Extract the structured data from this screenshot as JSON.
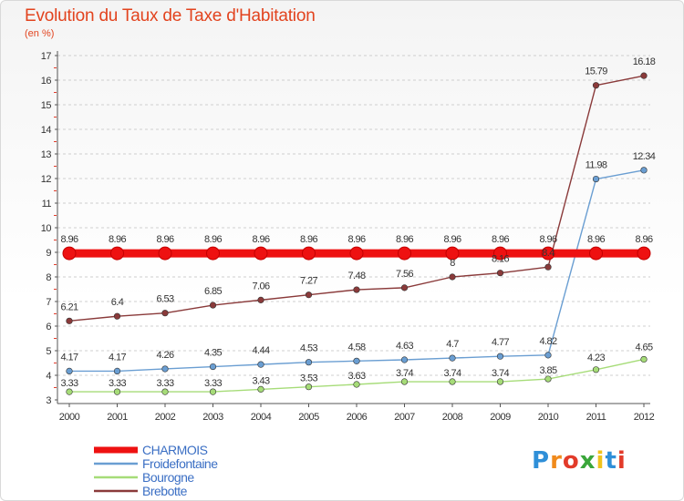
{
  "title": "Evolution du Taux de Taxe d'Habitation",
  "subtitle": "(en %)",
  "logo": {
    "letters": [
      "P",
      "r",
      "o",
      "x",
      "i",
      "t",
      "i"
    ],
    "colors": [
      "#2f8fd8",
      "#f08a1c",
      "#e23b2a",
      "#3aa63a",
      "#f0c21c",
      "#2f8fd8",
      "#e23b2a"
    ]
  },
  "chart_data": {
    "type": "line",
    "title": "Evolution du Taux de Taxe d'Habitation",
    "ylabel": "(en %)",
    "xlabel": "",
    "x": [
      "2000",
      "2001",
      "2002",
      "2003",
      "2004",
      "2005",
      "2006",
      "2007",
      "2008",
      "2009",
      "2010",
      "2011",
      "2012"
    ],
    "ylim": [
      3,
      17
    ],
    "yticks": [
      "3",
      "4",
      "5",
      "6",
      "7",
      "8",
      "9",
      "10",
      "11",
      "12",
      "13",
      "14",
      "15",
      "16",
      "17"
    ],
    "grid": "horizontal dashed",
    "legend_position": "bottom-left",
    "series": [
      {
        "name": "CHARMOIS",
        "color": "#ee1111",
        "values": [
          8.96,
          8.96,
          8.96,
          8.96,
          8.96,
          8.96,
          8.96,
          8.96,
          8.96,
          8.96,
          8.96,
          8.96,
          8.96
        ],
        "labels": [
          "8.96",
          "8.96",
          "8.96",
          "8.96",
          "8.96",
          "8.96",
          "8.96",
          "8.96",
          "8.96",
          "8.96",
          "8.96",
          "8.96",
          "8.96"
        ]
      },
      {
        "name": "Froidefontaine",
        "color": "#6a9ed2",
        "values": [
          4.17,
          4.17,
          4.26,
          4.35,
          4.44,
          4.53,
          4.58,
          4.63,
          4.7,
          4.77,
          4.82,
          11.98,
          12.34
        ],
        "labels": [
          "4.17",
          "4.17",
          "4.26",
          "4.35",
          "4.44",
          "4.53",
          "4.58",
          "4.63",
          "4.7",
          "4.77",
          "4.82",
          "11.98",
          "12.34"
        ]
      },
      {
        "name": "Bourogne",
        "color": "#a6dc78",
        "values": [
          3.33,
          3.33,
          3.33,
          3.33,
          3.43,
          3.53,
          3.63,
          3.74,
          3.74,
          3.74,
          3.85,
          4.23,
          4.65
        ],
        "labels": [
          "3.33",
          "3.33",
          "3.33",
          "3.33",
          "3.43",
          "3.53",
          "3.63",
          "3.74",
          "3.74",
          "3.74",
          "3.85",
          "4.23",
          "4.65"
        ]
      },
      {
        "name": "Brebotte",
        "color": "#8a3a3a",
        "values": [
          6.21,
          6.4,
          6.53,
          6.85,
          7.06,
          7.27,
          7.48,
          7.56,
          8,
          8.16,
          8.4,
          15.79,
          16.18
        ],
        "labels": [
          "6.21",
          "6.4",
          "6.53",
          "6.85",
          "7.06",
          "7.27",
          "7.48",
          "7.56",
          "8",
          "8.16",
          "8.4",
          "15.79",
          "16.18"
        ]
      }
    ]
  }
}
